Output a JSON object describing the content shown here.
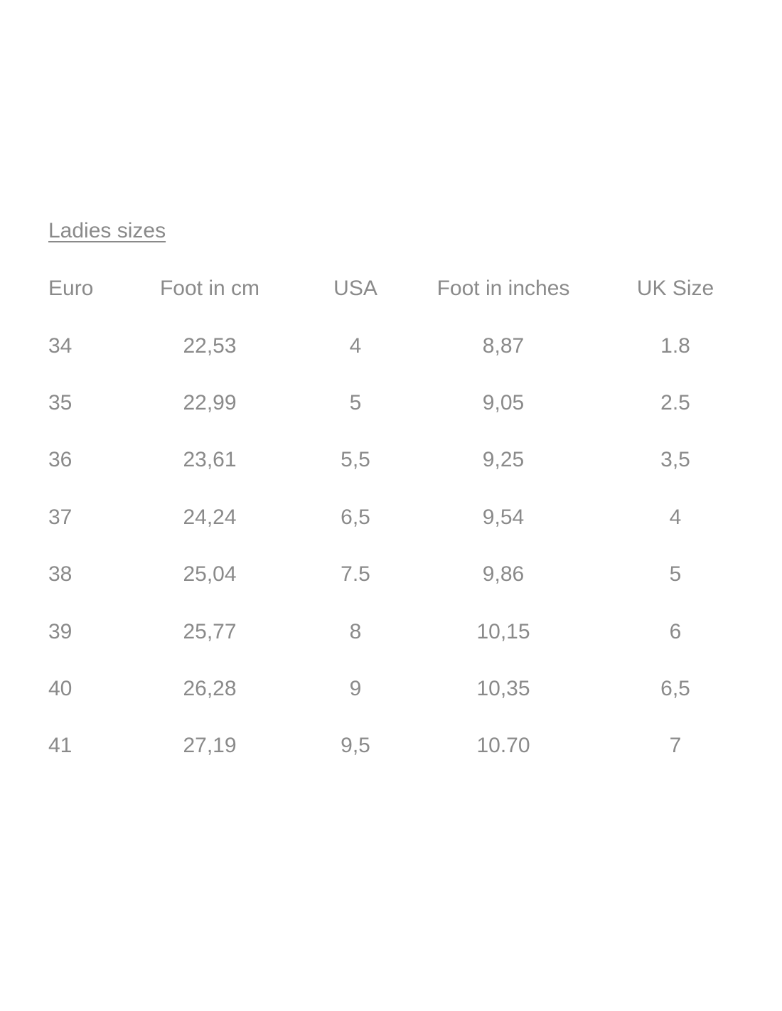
{
  "colors": {
    "background": "#ffffff",
    "text": "#8a8a8a"
  },
  "table": {
    "title": "Ladies sizes",
    "columns": [
      "Euro",
      "Foot in cm",
      "USA",
      "Foot in inches",
      "UK Size"
    ],
    "rows": [
      [
        "34",
        "22,53",
        "4",
        "8,87",
        "1.8"
      ],
      [
        "35",
        "22,99",
        "5",
        "9,05",
        "2.5"
      ],
      [
        "36",
        "23,61",
        "5,5",
        "9,25",
        "3,5"
      ],
      [
        "37",
        "24,24",
        "6,5",
        "9,54",
        "4"
      ],
      [
        "38",
        "25,04",
        "7.5",
        "9,86",
        "5"
      ],
      [
        "39",
        "25,77",
        "8",
        "10,15",
        "6"
      ],
      [
        "40",
        "26,28",
        "9",
        "10,35",
        "6,5"
      ],
      [
        "41",
        "27,19",
        "9,5",
        "10.70",
        "7"
      ]
    ]
  }
}
